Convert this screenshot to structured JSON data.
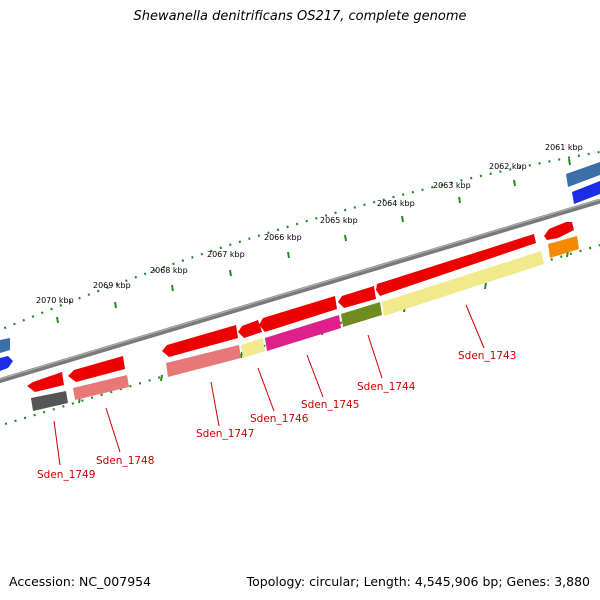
{
  "title": "Shewanella denitrificans OS217, complete genome",
  "footer": {
    "accession": "Accession: NC_007954",
    "summary": "Topology: circular; Length: 4,545,906 bp; Genes: 3,880"
  },
  "ticks": [
    "2061 kbp",
    "2062 kbp",
    "2063 kbp",
    "2064 kbp",
    "2065 kbp",
    "2066 kbp",
    "2067 kbp",
    "2068 kbp",
    "2069 kbp",
    "2070 kbp"
  ],
  "genes": [
    {
      "label": "Sden_1743",
      "cog_color": "#f2e88c"
    },
    {
      "label": "Sden_1744",
      "cog_color": "#6e8c1f"
    },
    {
      "label": "Sden_1745",
      "cog_color": "#e0208a"
    },
    {
      "label": "Sden_1746",
      "cog_color": "#f2e88c"
    },
    {
      "label": "Sden_1747",
      "cog_color": "#e87878"
    },
    {
      "label": "Sden_1748",
      "cog_color": "#e87878"
    },
    {
      "label": "Sden_1749",
      "cog_color": "#555555"
    }
  ],
  "colors": {
    "cds": "#ff0000",
    "backbone": "#777777",
    "tick_mark": "#228b22",
    "label": "#cc0000",
    "edge_blue": "#1a2ee6",
    "edge_steel": "#3a6fa8",
    "edge_orange": "#f58a00"
  }
}
